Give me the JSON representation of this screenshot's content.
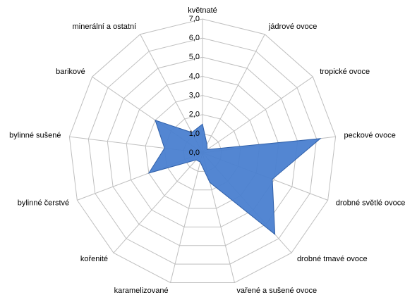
{
  "chart_data": {
    "type": "radar",
    "categories": [
      "květnaté",
      "jádrové ovoce",
      "tropické ovoce",
      "peckové ovoce",
      "drobné světlé ovoce",
      "drobné tmavé ovoce",
      "vařené a sušené ovoce",
      "karamelizované",
      "kořenité",
      "bylinné čerstvé",
      "bylinné sušené",
      "barikové",
      "minerální a ostatní"
    ],
    "values": [
      1.5,
      0.5,
      0.3,
      6.2,
      3.9,
      5.7,
      1.6,
      0.5,
      0.5,
      3.0,
      2.0,
      3.0,
      1.2
    ],
    "color": "#4a7fd0",
    "ylim": [
      0,
      7
    ],
    "yticks": [
      {
        "value": 0,
        "label": "0,0"
      },
      {
        "value": 1,
        "label": "1,0"
      },
      {
        "value": 2,
        "label": "2,0"
      },
      {
        "value": 3,
        "label": "3,0"
      },
      {
        "value": 4,
        "label": "4,0"
      },
      {
        "value": 5,
        "label": "5,0"
      },
      {
        "value": 6,
        "label": "6,0"
      },
      {
        "value": 7,
        "label": "7,0"
      }
    ],
    "grid": true
  }
}
